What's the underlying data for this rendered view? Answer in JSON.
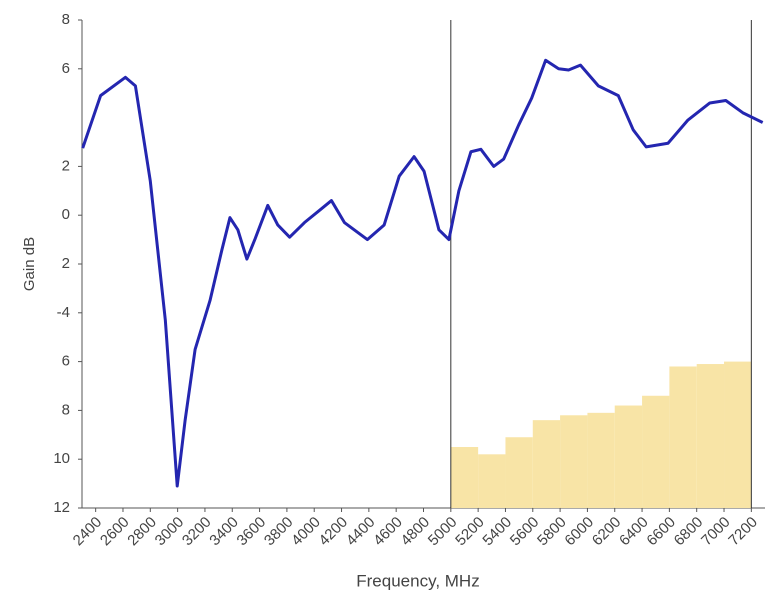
{
  "chart_data": {
    "type": "line",
    "x_label": "Frequency, MHz",
    "y_label": "Gain dB",
    "xlim": [
      2300,
      7300
    ],
    "ylim": [
      -12,
      8
    ],
    "xticks": [
      2400,
      2600,
      2800,
      3000,
      3200,
      3400,
      3600,
      3800,
      4000,
      4200,
      4400,
      4600,
      4800,
      5000,
      5200,
      5400,
      5600,
      5800,
      6000,
      6200,
      6400,
      6600,
      6800,
      7000,
      7200
    ],
    "yticks": [
      8,
      6,
      2,
      0,
      {
        "value": -2,
        "label": "2"
      },
      -4,
      {
        "value": -6,
        "label": "6"
      },
      {
        "value": -8,
        "label": "8"
      },
      {
        "value": -10,
        "label": "10"
      },
      {
        "value": -12,
        "label": "12"
      }
    ],
    "series": [
      {
        "type": "line",
        "color": "#2426b0",
        "x": [
          2305,
          2436,
          2618,
          2691,
          2800,
          2910,
          2997,
          3055,
          3128,
          3237,
          3325,
          3383,
          3441,
          3507,
          3565,
          3660,
          3733,
          3820,
          3929,
          4039,
          4126,
          4221,
          4389,
          4512,
          4622,
          4731,
          4804,
          4913,
          4986,
          5059,
          5147,
          5220,
          5314,
          5387,
          5497,
          5592,
          5694,
          5789,
          5862,
          5949,
          6080,
          6226,
          6335,
          6430,
          6590,
          6736,
          6896,
          7013,
          7137,
          7283
        ],
        "values": [
          2.75,
          4.9,
          5.65,
          5.3,
          1.4,
          -4.3,
          -11.1,
          -8.4,
          -5.5,
          -3.5,
          -1.4,
          -0.1,
          -0.6,
          -1.8,
          -1.0,
          0.4,
          -0.4,
          -0.9,
          -0.3,
          0.2,
          0.6,
          -0.3,
          -1.0,
          -0.4,
          1.6,
          2.4,
          1.8,
          -0.6,
          -1.0,
          1.0,
          2.6,
          2.7,
          2.0,
          2.3,
          3.7,
          4.8,
          6.35,
          6.0,
          5.95,
          6.15,
          5.3,
          4.9,
          3.5,
          2.8,
          2.95,
          3.9,
          4.6,
          4.7,
          4.2,
          3.8
        ]
      },
      {
        "type": "step-area",
        "color": "#f8e4a6",
        "bins": [
          5000,
          5200,
          5400,
          5600,
          5800,
          6000,
          6200,
          6400,
          6600,
          6800,
          7000,
          7200
        ],
        "values": [
          -9.5,
          -9.8,
          -9.1,
          -8.4,
          -8.2,
          -8.1,
          -7.8,
          -7.4,
          -6.2,
          -6.1,
          -6.0
        ]
      }
    ]
  }
}
